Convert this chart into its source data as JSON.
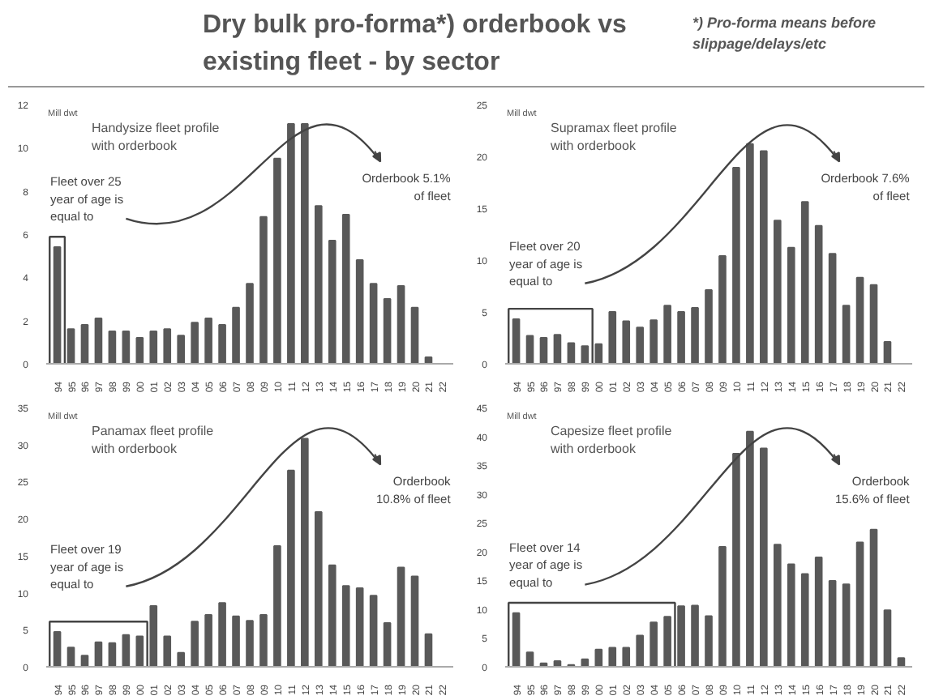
{
  "chart_data": [
    {
      "type": "other",
      "title": "Dry bulk pro-forma*) orderbook vs existing fleet - by sector",
      "annotations": [
        "*) Pro-forma means before slippage/delays/etc"
      ]
    },
    {
      "type": "bar",
      "title": "Handysize fleet profile with orderbook",
      "ylabel": "Mill dwt",
      "color": "#595959",
      "categories": [
        "94",
        "95",
        "96",
        "97",
        "98",
        "99",
        "00",
        "01",
        "02",
        "03",
        "04",
        "05",
        "06",
        "07",
        "08",
        "09",
        "10",
        "11",
        "12",
        "13",
        "14",
        "15",
        "16",
        "17",
        "18",
        "19",
        "20",
        "21",
        "22"
      ],
      "values": [
        5.4,
        1.6,
        1.8,
        2.1,
        1.5,
        1.5,
        1.2,
        1.5,
        1.6,
        1.3,
        1.9,
        2.1,
        1.8,
        2.6,
        3.7,
        6.8,
        9.5,
        11.1,
        11.1,
        7.3,
        5.7,
        6.9,
        4.8,
        3.7,
        3.0,
        3.6,
        2.6,
        0.3,
        null
      ],
      "ylim": [
        0,
        12
      ],
      "yticks": [
        0,
        2,
        4,
        6,
        8,
        10,
        12
      ],
      "annotations": [
        "Fleet over 25 year of age is equal to",
        "Orderbook 5.1% of fleet"
      ]
    },
    {
      "type": "bar",
      "title": "Supramax fleet profile with orderbook",
      "ylabel": "Mill dwt",
      "color": "#595959",
      "categories": [
        "94",
        "95",
        "96",
        "97",
        "98",
        "99",
        "00",
        "01",
        "02",
        "03",
        "04",
        "05",
        "06",
        "07",
        "08",
        "09",
        "10",
        "11",
        "12",
        "13",
        "14",
        "15",
        "16",
        "17",
        "18",
        "19",
        "20",
        "21",
        "22"
      ],
      "values": [
        4.3,
        2.7,
        2.5,
        2.8,
        2.0,
        1.7,
        1.9,
        5.0,
        4.1,
        3.5,
        4.2,
        5.6,
        5.0,
        5.4,
        7.1,
        10.4,
        18.9,
        21.2,
        20.5,
        13.8,
        11.2,
        15.6,
        13.3,
        10.6,
        5.6,
        8.3,
        7.6,
        2.1,
        null
      ],
      "ylim": [
        0,
        25
      ],
      "yticks": [
        0,
        5,
        10,
        15,
        20,
        25
      ],
      "annotations": [
        "Fleet over 20 year of age is equal to",
        "Orderbook 7.6% of fleet"
      ]
    },
    {
      "type": "bar",
      "title": "Panamax fleet profile with orderbook",
      "ylabel": "Mill dwt",
      "color": "#595959",
      "categories": [
        "94",
        "95",
        "96",
        "97",
        "98",
        "99",
        "00",
        "01",
        "02",
        "03",
        "04",
        "05",
        "06",
        "07",
        "08",
        "09",
        "10",
        "11",
        "12",
        "13",
        "14",
        "15",
        "16",
        "17",
        "18",
        "19",
        "20",
        "21",
        "22"
      ],
      "values": [
        4.7,
        2.6,
        1.5,
        3.3,
        3.2,
        4.3,
        4.1,
        8.2,
        4.1,
        1.9,
        6.1,
        7.0,
        8.6,
        6.8,
        6.2,
        7.0,
        16.3,
        26.5,
        30.8,
        20.9,
        13.7,
        10.9,
        10.6,
        9.6,
        5.9,
        13.4,
        12.2,
        4.4,
        null
      ],
      "ylim": [
        0,
        35
      ],
      "yticks": [
        0,
        5,
        10,
        15,
        20,
        25,
        30,
        35
      ],
      "annotations": [
        "Fleet over 19 year of age is equal to",
        "Orderbook 10.8% of fleet"
      ]
    },
    {
      "type": "bar",
      "title": "Capesize fleet profile with orderbook",
      "ylabel": "Mill dwt",
      "color": "#595959",
      "categories": [
        "94",
        "95",
        "96",
        "97",
        "98",
        "99",
        "00",
        "01",
        "02",
        "03",
        "04",
        "05",
        "06",
        "07",
        "08",
        "09",
        "10",
        "11",
        "12",
        "13",
        "14",
        "15",
        "16",
        "17",
        "18",
        "19",
        "20",
        "21",
        "22"
      ],
      "values": [
        9.3,
        2.5,
        0.6,
        1.0,
        0.3,
        1.3,
        3.0,
        3.3,
        3.3,
        5.4,
        7.7,
        8.7,
        10.5,
        10.6,
        8.8,
        20.8,
        37.0,
        40.8,
        37.9,
        21.2,
        17.8,
        16.1,
        19.0,
        14.9,
        14.3,
        21.6,
        23.8,
        9.8,
        1.5
      ],
      "ylim": [
        0,
        45
      ],
      "yticks": [
        0,
        5,
        10,
        15,
        20,
        25,
        30,
        35,
        40,
        45
      ],
      "annotations": [
        "Fleet over 14 year of age is equal to",
        "Orderbook 15.6% of fleet"
      ]
    }
  ]
}
